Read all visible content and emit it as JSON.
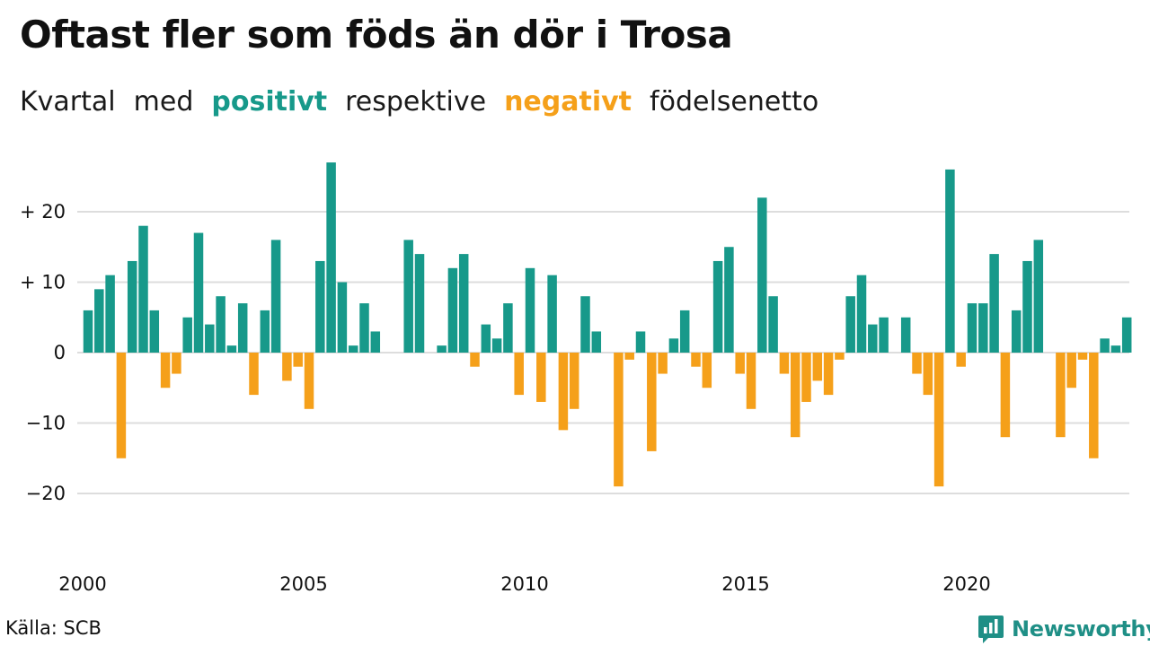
{
  "title": "Oftast fler som föds än dör i Trosa",
  "subtitle": {
    "w1": "Kvartal",
    "w2": "med",
    "positive": "positivt",
    "w3": "respektive",
    "negative": "negativt",
    "w4": "födelsenetto"
  },
  "colors": {
    "positive": "#17998a",
    "negative": "#f5a01a",
    "grid": "#dddddd",
    "brand": "#1f8f86"
  },
  "source": "Källa: SCB",
  "brand": {
    "name": "Newsworthy",
    "icon": "newsworthy-logo-icon"
  },
  "chart_data": {
    "type": "bar",
    "x_start": "2000 Q1",
    "frequency": "quarterly",
    "xtick_labels": [
      "2000",
      "2005",
      "2010",
      "2015",
      "2020"
    ],
    "ytick_values": [
      20,
      10,
      0,
      -10,
      -20
    ],
    "ytick_labels": [
      "+ 20",
      "+ 10",
      "0",
      "−10",
      "−20"
    ],
    "ylim": [
      -26,
      29
    ],
    "grid": true,
    "values": [
      6,
      9,
      11,
      -15,
      13,
      18,
      6,
      -5,
      -3,
      5,
      17,
      4,
      8,
      1,
      7,
      -6,
      6,
      16,
      -4,
      -2,
      -8,
      13,
      27,
      10,
      1,
      7,
      3,
      0,
      0,
      16,
      14,
      0,
      1,
      12,
      14,
      -2,
      4,
      2,
      7,
      -6,
      12,
      -7,
      11,
      -11,
      -8,
      8,
      3,
      0,
      -19,
      -1,
      3,
      -14,
      -3,
      2,
      6,
      -2,
      -5,
      13,
      15,
      -3,
      -8,
      22,
      8,
      -3,
      -12,
      -7,
      -4,
      -6,
      -1,
      8,
      11,
      4,
      5,
      0,
      5,
      -3,
      -6,
      -19,
      26,
      -2,
      7,
      7,
      14,
      -12,
      6,
      13,
      16,
      0,
      -12,
      -5,
      -1,
      -15,
      2,
      1,
      5
    ]
  }
}
